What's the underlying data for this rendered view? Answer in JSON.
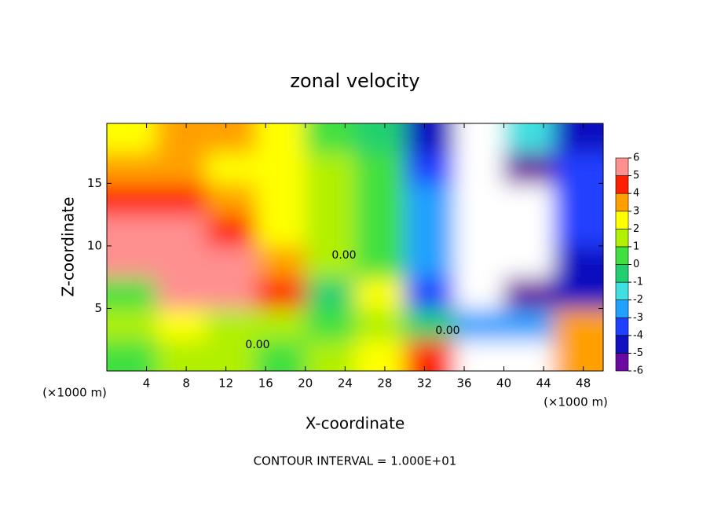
{
  "chart_data": {
    "type": "heatmap",
    "title": "zonal velocity",
    "xlabel": "X-coordinate",
    "ylabel": "Z-coordinate",
    "x_unit_left": "(×1000 m)",
    "x_unit_right": "(×1000 m)",
    "footer": "CONTOUR INTERVAL = 1.000E+01",
    "annotations": [
      "0.00",
      "0.00",
      "0.00"
    ],
    "xlim": [
      0,
      50
    ],
    "xticks": [
      4,
      8,
      12,
      16,
      20,
      24,
      28,
      32,
      36,
      40,
      44,
      48
    ],
    "ylim": [
      0,
      19.8
    ],
    "yticks": [
      5,
      10,
      15
    ],
    "x_edges": [
      0,
      5,
      10,
      15,
      20,
      25,
      30,
      35,
      40,
      45,
      50
    ],
    "y_edges": [
      0,
      2.5,
      5,
      7.5,
      10,
      12.5,
      15,
      17.5,
      19.8
    ],
    "z": [
      [
        0,
        1,
        1,
        0,
        1,
        2,
        4,
        7,
        7,
        3
      ],
      [
        1,
        2,
        1.5,
        1,
        0,
        1,
        -1,
        -3,
        -3,
        3
      ],
      [
        0,
        5,
        5,
        4,
        -1,
        2,
        -4,
        -7,
        -6,
        -5
      ],
      [
        5,
        5,
        5,
        3,
        1,
        0,
        -3,
        -7,
        -7,
        -5
      ],
      [
        5,
        5,
        4,
        2,
        1,
        0,
        -3,
        -7,
        -7,
        -4
      ],
      [
        4,
        4,
        3,
        2,
        1,
        0,
        -3,
        -7,
        -7,
        -4
      ],
      [
        3,
        3,
        2,
        2,
        1,
        0,
        -4,
        -7,
        -6,
        -4
      ],
      [
        2,
        3,
        3,
        2,
        0,
        -1,
        -5,
        -7,
        -2,
        -5
      ]
    ],
    "zlim": [
      -6,
      6
    ],
    "zticks": [
      -6,
      -5,
      -4,
      -3,
      -2,
      -1,
      0,
      1,
      2,
      3,
      4,
      5,
      6
    ],
    "colors": [
      "#6a0aa0",
      "#1010c0",
      "#2040ff",
      "#20a0ff",
      "#40e0e0",
      "#20d070",
      "#40e040",
      "#b0f000",
      "#ffff00",
      "#ffa000",
      "#ff2000",
      "#ff9090"
    ],
    "out_of_range_color": "#ffffff"
  }
}
